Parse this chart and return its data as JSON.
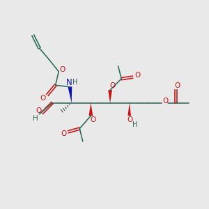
{
  "bg": "#e9e9e9",
  "bc": "#2a6b58",
  "oc": "#cc1111",
  "nc": "#1111bb",
  "lw": 1.15,
  "fs": 7.0,
  "figsize": [
    3.0,
    3.0
  ],
  "dpi": 100,
  "xlim": [
    25,
    275
  ],
  "ylim": [
    280,
    20
  ]
}
